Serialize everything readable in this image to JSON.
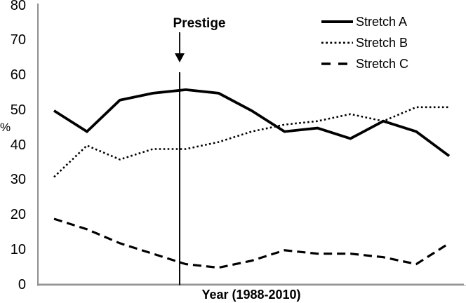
{
  "chart_data": {
    "type": "line",
    "title": "",
    "xlabel": "Year (1988-2010)",
    "ylabel": "%",
    "ylim": [
      0,
      80
    ],
    "y_ticks": [
      0,
      10,
      20,
      30,
      40,
      50,
      60,
      70,
      80
    ],
    "x_point_count": 13,
    "grid": false,
    "legend_position": "top-right",
    "series": [
      {
        "name": "Stretch A",
        "line_style": "solid",
        "values": [
          50,
          44,
          53,
          55,
          56,
          55,
          50,
          44,
          45,
          42,
          47,
          44,
          37
        ]
      },
      {
        "name": "Stretch B",
        "line_style": "dotted",
        "values": [
          31,
          40,
          36,
          39,
          39,
          41,
          44,
          46,
          47,
          49,
          47,
          51,
          51
        ]
      },
      {
        "name": "Stretch C",
        "line_style": "dashed",
        "values": [
          19,
          16,
          12,
          9,
          6,
          5,
          7,
          10,
          9,
          9,
          8,
          6,
          12
        ]
      }
    ],
    "annotation": {
      "label": "Prestige",
      "x_index": 3.815,
      "line_top_value": 61
    }
  },
  "colors": {
    "line": "#000000",
    "axis": "#8f8f8f",
    "axis_shadow": "#c8c8c8",
    "text": "#000000",
    "background": "#ffffff"
  }
}
